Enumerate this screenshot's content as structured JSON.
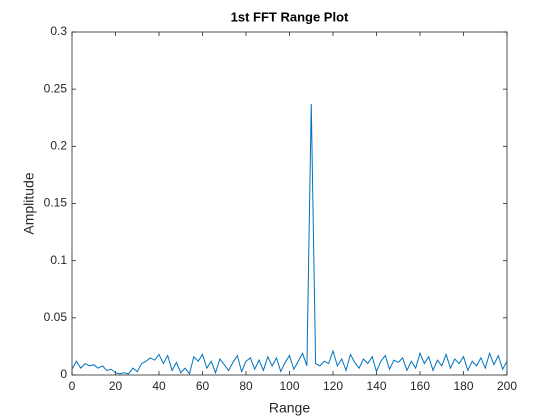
{
  "chart_data": {
    "type": "line",
    "title": "1st FFT Range Plot",
    "x_label": "Range",
    "y_label": "Amplitude",
    "color": "#0072bd",
    "x": [
      0,
      2,
      4,
      6,
      8,
      10,
      12,
      14,
      16,
      18,
      20,
      22,
      24,
      26,
      28,
      30,
      32,
      34,
      36,
      38,
      40,
      42,
      44,
      46,
      48,
      50,
      52,
      54,
      56,
      58,
      60,
      62,
      64,
      66,
      68,
      70,
      72,
      74,
      76,
      78,
      80,
      82,
      84,
      86,
      88,
      90,
      92,
      94,
      96,
      98,
      100,
      102,
      104,
      106,
      108,
      110,
      112,
      114,
      116,
      118,
      120,
      122,
      124,
      126,
      128,
      130,
      132,
      134,
      136,
      138,
      140,
      142,
      144,
      146,
      148,
      150,
      152,
      154,
      156,
      158,
      160,
      162,
      164,
      166,
      168,
      170,
      172,
      174,
      176,
      178,
      180,
      182,
      184,
      186,
      188,
      190,
      192,
      194,
      196,
      198,
      200
    ],
    "values": [
      0.005,
      0.012,
      0.006,
      0.01,
      0.008,
      0.009,
      0.006,
      0.008,
      0.004,
      0.005,
      0.002,
      0.001,
      0.002,
      0.001,
      0.006,
      0.003,
      0.01,
      0.012,
      0.015,
      0.013,
      0.018,
      0.01,
      0.017,
      0.004,
      0.011,
      0.002,
      0.006,
      0.001,
      0.016,
      0.012,
      0.018,
      0.006,
      0.012,
      0.002,
      0.014,
      0.009,
      0.004,
      0.011,
      0.017,
      0.003,
      0.012,
      0.015,
      0.005,
      0.013,
      0.004,
      0.016,
      0.008,
      0.015,
      0.003,
      0.011,
      0.017,
      0.005,
      0.012,
      0.019,
      0.008,
      0.237,
      0.01,
      0.008,
      0.012,
      0.01,
      0.021,
      0.008,
      0.014,
      0.004,
      0.018,
      0.011,
      0.006,
      0.014,
      0.01,
      0.016,
      0.003,
      0.012,
      0.017,
      0.005,
      0.013,
      0.011,
      0.015,
      0.004,
      0.012,
      0.006,
      0.019,
      0.01,
      0.016,
      0.004,
      0.013,
      0.008,
      0.018,
      0.006,
      0.014,
      0.01,
      0.016,
      0.004,
      0.012,
      0.008,
      0.015,
      0.006,
      0.019,
      0.009,
      0.017,
      0.005,
      0.012
    ],
    "xlim": [
      0,
      200
    ],
    "xticks": [
      0,
      20,
      40,
      60,
      80,
      100,
      120,
      140,
      160,
      180,
      200
    ],
    "ylim": [
      0,
      0.3
    ],
    "yticks": [
      0,
      0.05,
      0.1,
      0.15,
      0.2,
      0.25,
      0.3
    ],
    "grid": false
  }
}
